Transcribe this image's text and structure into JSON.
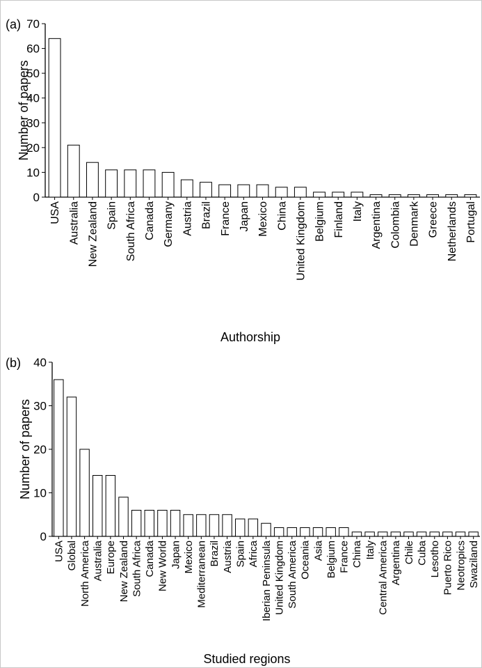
{
  "chart_data": [
    {
      "type": "bar",
      "panel_label": "(a)",
      "xlabel": "Authorship",
      "ylabel": "Number of papers",
      "ylim": [
        0,
        70
      ],
      "yticks": [
        "0",
        "10",
        "20",
        "30",
        "40",
        "50",
        "60",
        "70"
      ],
      "categories": [
        "USA",
        "Australia",
        "New Zealand",
        "Spain",
        "South Africa",
        "Canada",
        "Germany",
        "Austria",
        "Brazil",
        "France",
        "Japan",
        "Mexico",
        "China",
        "United Kingdom",
        "Belgium",
        "Finland",
        "Italy",
        "Argentina",
        "Colombia",
        "Denmark",
        "Greece",
        "Netherlands",
        "Portugal"
      ],
      "values": [
        64,
        21,
        14,
        11,
        11,
        11,
        10,
        7,
        6,
        5,
        5,
        5,
        4,
        4,
        2,
        2,
        2,
        1,
        1,
        1,
        1,
        1,
        1
      ]
    },
    {
      "type": "bar",
      "panel_label": "(b)",
      "xlabel": "Studied regions",
      "ylabel": "Number of papers",
      "ylim": [
        0,
        40
      ],
      "yticks": [
        "0",
        "10",
        "20",
        "30",
        "40"
      ],
      "categories": [
        "USA",
        "Global",
        "North America",
        "Australia",
        "Europe",
        "New Zealand",
        "South Africa",
        "Canada",
        "New World",
        "Japan",
        "Mexico",
        "Mediterranean",
        "Brazil",
        "Austria",
        "Spain",
        "Africa",
        "Iberian Peninsula",
        "United Kingdom",
        "South America",
        "Oceania",
        "Asia",
        "Belgium",
        "France",
        "China",
        "Italy",
        "Central America",
        "Argentina",
        "Chile",
        "Cuba",
        "Lesotho",
        "Puerto Rico",
        "Neotropics",
        "Swaziland"
      ],
      "values": [
        36,
        32,
        20,
        14,
        14,
        9,
        6,
        6,
        6,
        6,
        5,
        5,
        5,
        5,
        4,
        4,
        3,
        2,
        2,
        2,
        2,
        2,
        2,
        1,
        1,
        1,
        1,
        1,
        1,
        1,
        1,
        1,
        1
      ]
    }
  ]
}
